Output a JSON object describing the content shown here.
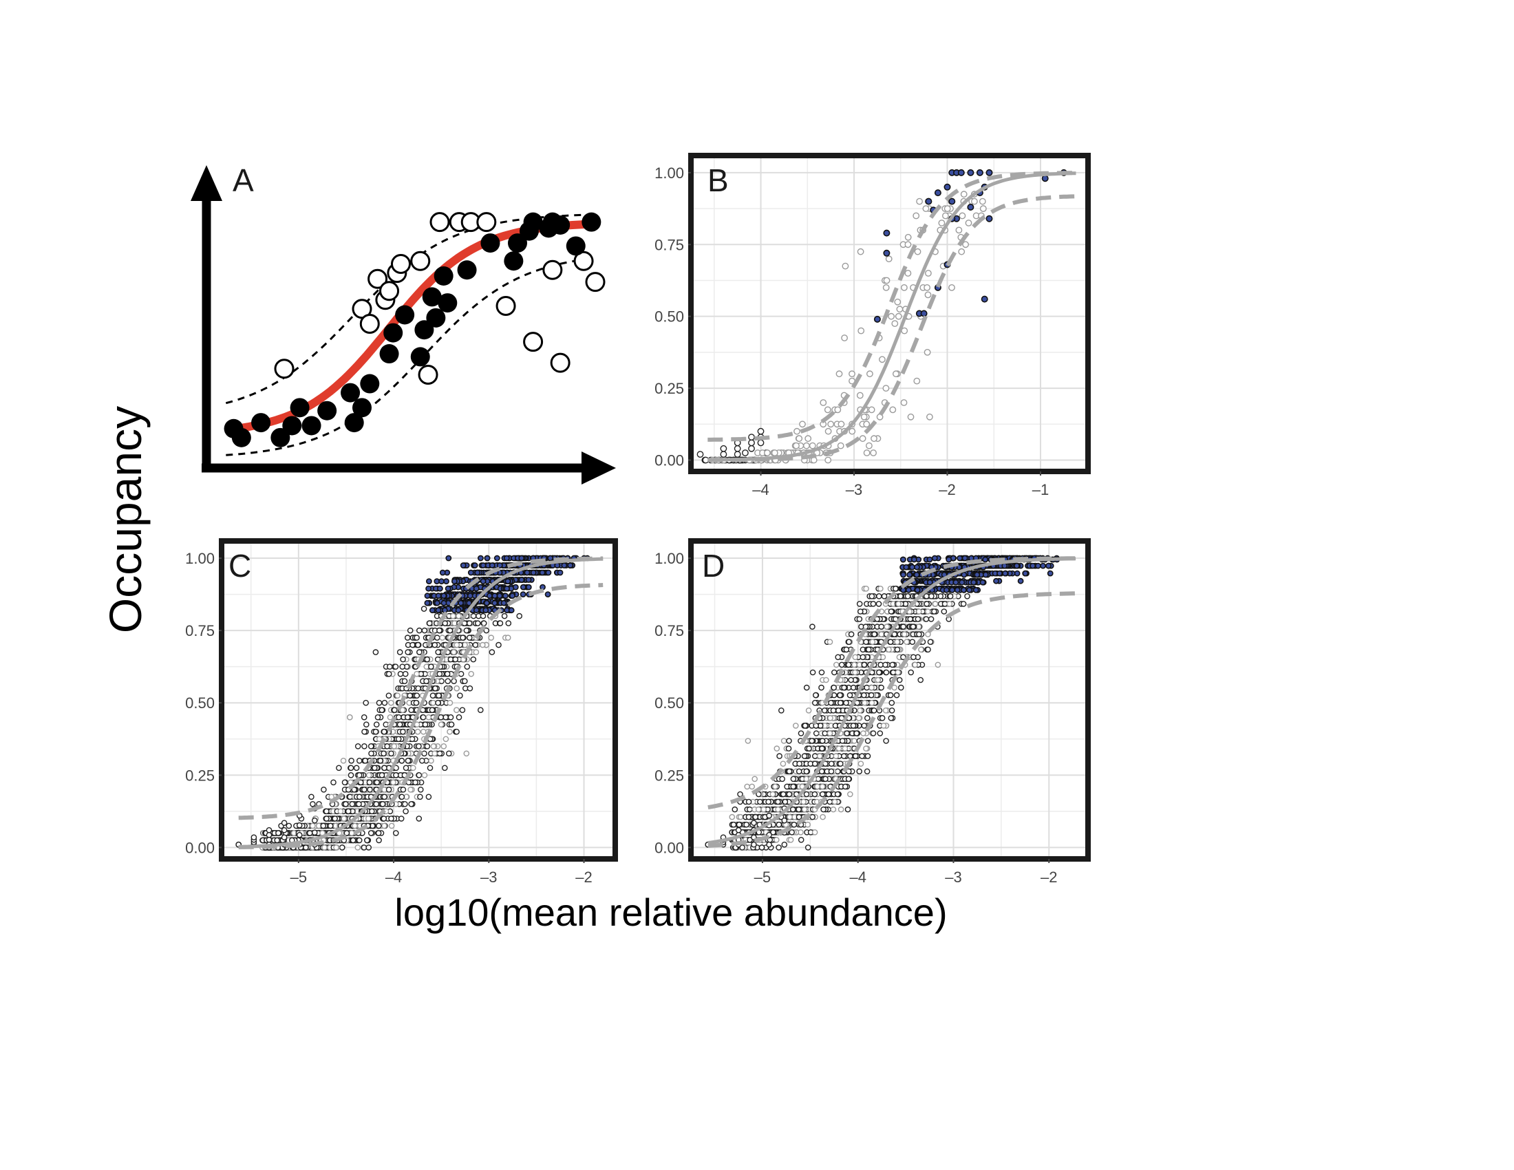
{
  "figure": {
    "ylabel": "Occupancy",
    "xlabel": "log10(mean relative abundance)"
  },
  "colors": {
    "frame": "#1a1a1a",
    "grid": "#dddddd",
    "fit_line": "#a6a6a6",
    "ci_line": "#a6a6a6",
    "core_fill": "#3b4fa0",
    "schematic_fit": "#e03c2c",
    "schematic_axis": "#000000"
  },
  "chart_data": [
    {
      "panel": "A",
      "type": "scatter",
      "note_visible": "schematic, no axis ticks",
      "label": "A",
      "filled_points": [
        [
          0.07,
          0.12
        ],
        [
          0.09,
          0.09
        ],
        [
          0.14,
          0.14
        ],
        [
          0.19,
          0.09
        ],
        [
          0.22,
          0.13
        ],
        [
          0.24,
          0.19
        ],
        [
          0.27,
          0.13
        ],
        [
          0.31,
          0.18
        ],
        [
          0.37,
          0.24
        ],
        [
          0.38,
          0.14
        ],
        [
          0.4,
          0.19
        ],
        [
          0.42,
          0.27
        ],
        [
          0.47,
          0.37
        ],
        [
          0.48,
          0.44
        ],
        [
          0.51,
          0.5
        ],
        [
          0.55,
          0.36
        ],
        [
          0.56,
          0.45
        ],
        [
          0.58,
          0.56
        ],
        [
          0.59,
          0.49
        ],
        [
          0.61,
          0.63
        ],
        [
          0.62,
          0.54
        ],
        [
          0.67,
          0.65
        ],
        [
          0.73,
          0.74
        ],
        [
          0.79,
          0.68
        ],
        [
          0.8,
          0.74
        ],
        [
          0.83,
          0.78
        ],
        [
          0.84,
          0.81
        ],
        [
          0.88,
          0.79
        ],
        [
          0.89,
          0.81
        ],
        [
          0.91,
          0.8
        ],
        [
          0.95,
          0.73
        ],
        [
          0.99,
          0.81
        ]
      ],
      "open_points": [
        [
          0.2,
          0.32
        ],
        [
          0.4,
          0.52
        ],
        [
          0.42,
          0.47
        ],
        [
          0.44,
          0.62
        ],
        [
          0.46,
          0.55
        ],
        [
          0.47,
          0.58
        ],
        [
          0.49,
          0.64
        ],
        [
          0.5,
          0.67
        ],
        [
          0.55,
          0.68
        ],
        [
          0.57,
          0.3
        ],
        [
          0.6,
          0.81
        ],
        [
          0.65,
          0.81
        ],
        [
          0.68,
          0.81
        ],
        [
          0.72,
          0.81
        ],
        [
          0.77,
          0.53
        ],
        [
          0.84,
          0.41
        ],
        [
          0.89,
          0.65
        ],
        [
          0.91,
          0.34
        ],
        [
          0.97,
          0.68
        ],
        [
          1.0,
          0.61
        ]
      ],
      "fit_curve": "sigmoid",
      "confidence_band": "dashed"
    },
    {
      "panel": "B",
      "type": "scatter",
      "label": "B",
      "xlim": [
        -4.72,
        -0.52
      ],
      "ylim": [
        -0.03,
        1.05
      ],
      "xticks": [
        "-4",
        "-3",
        "-2",
        "-1"
      ],
      "yticks": [
        "0.00",
        "0.25",
        "0.50",
        "0.75",
        "1.00"
      ],
      "fit": {
        "midpoint": -2.45,
        "slope": 3.4
      },
      "ci_upper": {
        "midpoint": -2.62,
        "slope": 3.6,
        "top": 1.0,
        "bottom": 0.07
      },
      "ci_lower": {
        "midpoint": -2.28,
        "slope": 3.6,
        "top": 0.92,
        "bottom": 0.0
      },
      "core_points": [
        [
          -1.95,
          1.0
        ],
        [
          -1.9,
          1.0
        ],
        [
          -1.85,
          1.0
        ],
        [
          -1.75,
          1.0
        ],
        [
          -1.65,
          1.0
        ],
        [
          -1.55,
          1.0
        ],
        [
          -0.95,
          0.98
        ],
        [
          -0.75,
          1.0
        ],
        [
          -1.6,
          0.95
        ],
        [
          -1.65,
          0.93
        ],
        [
          -2.0,
          0.95
        ],
        [
          -2.1,
          0.93
        ],
        [
          -1.95,
          0.9
        ],
        [
          -2.2,
          0.9
        ],
        [
          -1.75,
          0.88
        ],
        [
          -2.15,
          0.87
        ],
        [
          -1.9,
          0.84
        ],
        [
          -1.95,
          0.84
        ],
        [
          -1.55,
          0.84
        ],
        [
          -2.65,
          0.79
        ],
        [
          -2.65,
          0.72
        ],
        [
          -2.0,
          0.68
        ],
        [
          -2.1,
          0.6
        ],
        [
          -1.6,
          0.56
        ],
        [
          -2.3,
          0.51
        ],
        [
          -2.25,
          0.51
        ],
        [
          -2.75,
          0.49
        ]
      ],
      "point_count_note": "gray open points follow fit"
    },
    {
      "panel": "C",
      "type": "scatter",
      "label": "C",
      "xlim": [
        -5.78,
        -1.7
      ],
      "ylim": [
        -0.03,
        1.05
      ],
      "xticks": [
        "-5",
        "-4",
        "-3",
        "-2"
      ],
      "yticks": [
        "0.00",
        "0.25",
        "0.50",
        "0.75",
        "1.00"
      ],
      "fit": {
        "midpoint": -3.7,
        "slope": 3.1
      },
      "ci_upper": {
        "midpoint": -3.85,
        "slope": 3.3,
        "top": 1.0,
        "bottom": 0.1
      },
      "ci_lower": {
        "midpoint": -3.55,
        "slope": 3.3,
        "top": 0.91,
        "bottom": 0.0
      },
      "core_region": {
        "x_from": -3.65,
        "x_to": -2.0,
        "y_from": 0.82,
        "y_to": 1.0
      }
    },
    {
      "panel": "D",
      "type": "scatter",
      "label": "D",
      "xlim": [
        -5.72,
        -1.62
      ],
      "ylim": [
        -0.03,
        1.05
      ],
      "xticks": [
        "-5",
        "-4",
        "-3",
        "-2"
      ],
      "yticks": [
        "0.00",
        "0.25",
        "0.50",
        "0.75",
        "1.00"
      ],
      "fit": {
        "midpoint": -4.05,
        "slope": 2.7
      },
      "ci_upper": {
        "midpoint": -4.25,
        "slope": 2.9,
        "top": 1.0,
        "bottom": 0.12
      },
      "ci_lower": {
        "midpoint": -3.85,
        "slope": 2.9,
        "top": 0.88,
        "bottom": 0.0
      },
      "core_region": {
        "x_from": -3.55,
        "x_to": -1.9,
        "y_from": 0.89,
        "y_to": 1.0
      }
    }
  ]
}
